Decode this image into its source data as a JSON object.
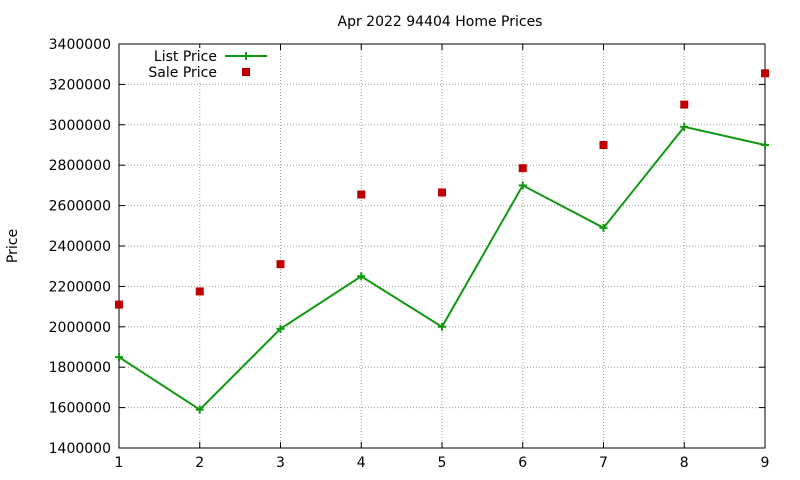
{
  "chart_data": {
    "type": "line",
    "title": "Apr 2022 94404 Home Prices",
    "xlabel": "",
    "ylabel": "Price",
    "x": [
      1,
      2,
      3,
      4,
      5,
      6,
      7,
      8,
      9
    ],
    "xlim": [
      1,
      9
    ],
    "ylim": [
      1400000,
      3400000
    ],
    "xticks": [
      "1",
      "2",
      "3",
      "4",
      "5",
      "6",
      "7",
      "8",
      "9"
    ],
    "yticks": [
      "1400000",
      "1600000",
      "1800000",
      "2000000",
      "2200000",
      "2400000",
      "2600000",
      "2800000",
      "3000000",
      "3200000",
      "3400000"
    ],
    "grid": true,
    "legend_position": "top-left",
    "series": [
      {
        "name": "List Price",
        "style": "line-with-plus-markers",
        "color": "#109910",
        "values": [
          1850000,
          1590000,
          1990000,
          2250000,
          2000000,
          2700000,
          2490000,
          2990000,
          2900000
        ]
      },
      {
        "name": "Sale Price",
        "style": "square-markers",
        "color": "#c00000",
        "values": [
          2110000,
          2175000,
          2310000,
          2655000,
          2665000,
          2785000,
          2900000,
          3100000,
          3255000
        ]
      }
    ]
  }
}
